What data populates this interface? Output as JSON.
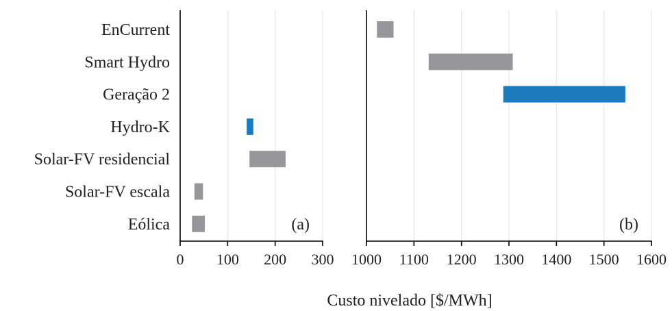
{
  "chart_data": {
    "type": "bar",
    "subtype": "range-bar (horizontal), two panels sharing categories",
    "categories": [
      "EnCurrent",
      "Smart Hydro",
      "Geração 2",
      "Hydro-K",
      "Solar-FV residencial",
      "Solar-FV escala",
      "Eólica"
    ],
    "xlabel": "Custo nivelado [$/MWh]",
    "grid": "vertical",
    "colors": {
      "gray": "#97979b",
      "blue": "#1c7bbd"
    },
    "panels": [
      {
        "label": "(a)",
        "xlim": [
          0,
          300
        ],
        "xticks": [
          0,
          100,
          200,
          300
        ],
        "bars": [
          {
            "category": "Hydro-K",
            "low": 140,
            "high": 154,
            "color": "blue"
          },
          {
            "category": "Solar-FV residencial",
            "low": 146,
            "high": 222,
            "color": "gray"
          },
          {
            "category": "Solar-FV escala",
            "low": 30,
            "high": 48,
            "color": "gray"
          },
          {
            "category": "Eólica",
            "low": 25,
            "high": 52,
            "color": "gray"
          }
        ]
      },
      {
        "label": "(b)",
        "xlim": [
          1000,
          1600
        ],
        "xticks": [
          1000,
          1100,
          1200,
          1300,
          1400,
          1500,
          1600
        ],
        "bars": [
          {
            "category": "EnCurrent",
            "low": 1022,
            "high": 1057,
            "color": "gray"
          },
          {
            "category": "Smart Hydro",
            "low": 1131,
            "high": 1308,
            "color": "gray"
          },
          {
            "category": "Geração 2",
            "low": 1288,
            "high": 1545,
            "color": "blue"
          }
        ]
      }
    ]
  }
}
